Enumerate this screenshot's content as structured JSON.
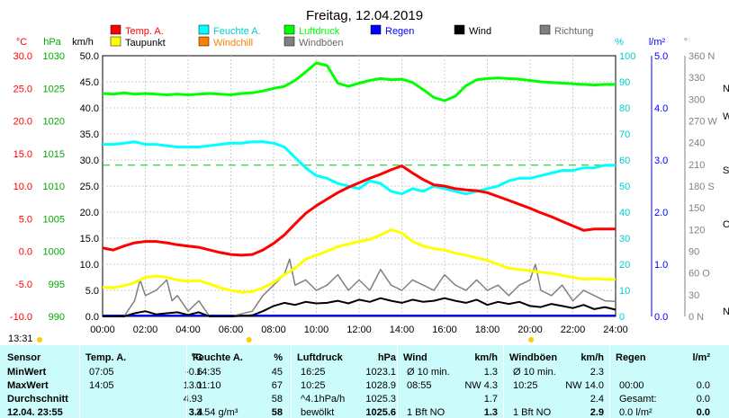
{
  "chart_data": {
    "type": "line",
    "title": "Freitag, 12.04.2019",
    "x_ticks": [
      "00:00",
      "02:00",
      "04:00",
      "06:00",
      "08:00",
      "10:00",
      "12:00",
      "14:00",
      "16:00",
      "18:00",
      "20:00",
      "22:00",
      "24:00"
    ],
    "axes": {
      "temp_unit": "°C",
      "hpa_unit": "hPa",
      "kmh_unit": "km/h",
      "pct_unit": "%",
      "lm2_unit": "l/m²",
      "dir_unit": "°",
      "temp_ticks": [
        "30.0",
        "25.0",
        "20.0",
        "15.0",
        "10.0",
        "5.0",
        "0.0",
        "-5.0",
        "-10.0"
      ],
      "hpa_ticks": [
        "1030",
        "1025",
        "1020",
        "1015",
        "1010",
        "1005",
        "1000",
        "995",
        "990"
      ],
      "kmh_ticks": [
        "50.0",
        "45.0",
        "40.0",
        "35.0",
        "30.0",
        "25.0",
        "20.0",
        "15.0",
        "10.0",
        "5.0",
        "0.0"
      ],
      "pct_ticks": [
        "100",
        "90",
        "80",
        "70",
        "60",
        "50",
        "40",
        "30",
        "20",
        "10",
        "0"
      ],
      "lm2_ticks": [
        "5.0",
        "4.0",
        "3.0",
        "2.0",
        "1.0",
        "0.0"
      ],
      "deg_ticks": [
        "360 N",
        "330",
        "300",
        "270 W",
        "240",
        "210",
        "180 S",
        "150",
        "120",
        "90",
        "60 O",
        "30",
        "0 N"
      ],
      "dir_letters": [
        "N",
        "W",
        "S",
        "O",
        "N"
      ],
      "ylim_temp": [
        -10,
        30
      ],
      "ylim_hpa": [
        990,
        1030
      ],
      "ylim_kmh": [
        0,
        50
      ],
      "ylim_pct": [
        0,
        100
      ],
      "ylim_lm2": [
        0,
        5
      ],
      "ylim_deg": [
        0,
        360
      ]
    },
    "legend": [
      {
        "name": "Temp. A.",
        "color": "#ff0000"
      },
      {
        "name": "Taupunkt",
        "color": "#ffff00"
      },
      {
        "name": "Feuchte A.",
        "color": "#00ffff"
      },
      {
        "name": "Windchill",
        "color": "#ff8000"
      },
      {
        "name": "Luftdruck",
        "color": "#00ff00"
      },
      {
        "name": "Windböen",
        "color": "#808080"
      },
      {
        "name": "Regen",
        "color": "#0000ff"
      },
      {
        "name": "Wind",
        "color": "#000000"
      },
      {
        "name": "Richtung",
        "color": "#808080"
      }
    ],
    "series": [
      {
        "name": "Temp. A.",
        "axis": "temp",
        "color": "#ff0000",
        "width": 3,
        "x": [
          0,
          0.5,
          1,
          1.5,
          2,
          2.5,
          3,
          3.5,
          4,
          4.5,
          5,
          5.5,
          6,
          6.5,
          7,
          7.5,
          8,
          8.5,
          9,
          9.5,
          10,
          10.5,
          11,
          11.5,
          12,
          12.5,
          13,
          13.5,
          14,
          14.5,
          15,
          15.5,
          16,
          16.5,
          17,
          17.5,
          18,
          18.5,
          19,
          19.5,
          20,
          20.5,
          21,
          21.5,
          22,
          22.5,
          23,
          23.5,
          24
        ],
        "y": [
          0.5,
          0.2,
          0.8,
          1.3,
          1.5,
          1.5,
          1.3,
          1.0,
          0.8,
          0.6,
          0.2,
          -0.2,
          -0.5,
          -0.6,
          -0.5,
          0.2,
          1.2,
          2.5,
          4.2,
          5.8,
          7.0,
          8.0,
          9.0,
          9.8,
          10.5,
          11.2,
          11.8,
          12.5,
          13.1,
          12.0,
          11.0,
          10.2,
          10.0,
          9.6,
          9.4,
          9.3,
          9.0,
          8.4,
          7.8,
          7.2,
          6.6,
          5.9,
          5.3,
          4.6,
          3.9,
          3.2,
          3.4,
          3.4,
          3.4
        ]
      },
      {
        "name": "Taupunkt",
        "axis": "temp",
        "color": "#ffff00",
        "width": 3,
        "x": [
          0,
          0.5,
          1,
          1.5,
          2,
          2.5,
          3,
          3.5,
          4,
          4.5,
          5,
          5.5,
          6,
          6.5,
          7,
          7.5,
          8,
          8.5,
          9,
          9.5,
          10,
          10.5,
          11,
          11.5,
          12,
          12.5,
          13,
          13.5,
          14,
          14.5,
          15,
          15.5,
          16,
          16.5,
          17,
          17.5,
          18,
          18.5,
          19,
          19.5,
          20,
          20.5,
          21,
          21.5,
          22,
          22.5,
          23,
          23.5,
          24
        ],
        "y": [
          -5.5,
          -5.6,
          -5.3,
          -4.8,
          -4.0,
          -3.8,
          -4.0,
          -4.4,
          -4.6,
          -4.5,
          -5.0,
          -5.6,
          -6.0,
          -6.3,
          -6.2,
          -5.6,
          -4.8,
          -3.6,
          -2.6,
          -1.2,
          -0.6,
          0.0,
          0.7,
          1.1,
          1.5,
          1.8,
          2.5,
          3.3,
          2.8,
          1.5,
          0.8,
          0.4,
          0.2,
          -0.3,
          -0.6,
          -1.0,
          -1.4,
          -2.0,
          -2.6,
          -2.8,
          -3.0,
          -3.2,
          -3.4,
          -3.7,
          -4.0,
          -4.3,
          -4.2,
          -4.3,
          -4.3
        ]
      },
      {
        "name": "Feuchte A.",
        "axis": "pct",
        "color": "#00ffff",
        "width": 3,
        "x": [
          0,
          0.5,
          1,
          1.5,
          2,
          2.5,
          3,
          3.5,
          4,
          4.5,
          5,
          5.5,
          6,
          6.5,
          7,
          7.5,
          8,
          8.5,
          9,
          9.5,
          10,
          10.5,
          11,
          11.5,
          12,
          12.5,
          13,
          13.5,
          14,
          14.5,
          15,
          15.5,
          16,
          16.5,
          17,
          17.5,
          18,
          18.5,
          19,
          19.5,
          20,
          20.5,
          21,
          21.5,
          22,
          22.5,
          23,
          23.5,
          24
        ],
        "y": [
          66,
          66,
          66.5,
          67,
          66,
          66,
          65.5,
          65,
          65,
          65,
          65.5,
          66,
          66.5,
          66.5,
          67,
          67,
          66.5,
          65,
          61,
          57,
          54,
          53,
          51,
          50,
          49,
          52,
          51,
          48,
          47,
          49,
          48,
          50,
          49,
          48,
          47,
          48,
          49,
          50,
          52,
          53,
          53,
          54,
          55,
          56,
          56,
          57,
          57,
          58,
          58
        ]
      },
      {
        "name": "Luftdruck",
        "axis": "hpa",
        "color": "#00ff00",
        "width": 3,
        "x": [
          0,
          0.5,
          1,
          1.5,
          2,
          2.5,
          3,
          3.5,
          4,
          4.5,
          5,
          5.5,
          6,
          6.5,
          7,
          7.5,
          8,
          8.5,
          9,
          9.5,
          10,
          10.5,
          11,
          11.5,
          12,
          12.5,
          13,
          13.5,
          14,
          14.5,
          15,
          15.5,
          16,
          16.5,
          17,
          17.5,
          18,
          18.5,
          19,
          19.5,
          20,
          20.5,
          21,
          21.5,
          22,
          22.5,
          23,
          23.5,
          24
        ],
        "y": [
          1024.2,
          1024.1,
          1024.3,
          1024.1,
          1024.2,
          1024.1,
          1024.0,
          1024.1,
          1024.0,
          1024.1,
          1024.2,
          1024.1,
          1024.0,
          1024.2,
          1024.3,
          1024.6,
          1025.0,
          1025.3,
          1026.2,
          1027.5,
          1028.9,
          1028.5,
          1025.8,
          1025.3,
          1025.8,
          1026.2,
          1026.5,
          1026.3,
          1026.4,
          1025.9,
          1024.8,
          1023.6,
          1023.1,
          1023.8,
          1025.4,
          1026.3,
          1026.5,
          1026.6,
          1026.5,
          1026.4,
          1026.2,
          1026.0,
          1025.9,
          1025.8,
          1025.7,
          1025.6,
          1025.5,
          1025.6,
          1025.6
        ]
      },
      {
        "name": "Wind",
        "axis": "kmh",
        "color": "#000000",
        "width": 2,
        "x": [
          0,
          1,
          1.5,
          2,
          2.5,
          3,
          3.5,
          4,
          4.5,
          5,
          6,
          7,
          7.5,
          8,
          8.5,
          9,
          9.5,
          10,
          10.5,
          11,
          11.5,
          12,
          12.5,
          13,
          13.5,
          14,
          14.5,
          15,
          15.5,
          16,
          16.5,
          17,
          17.5,
          18,
          18.5,
          19,
          19.5,
          20,
          20.5,
          21,
          21.5,
          22,
          22.5,
          23,
          23.5,
          24
        ],
        "y": [
          0,
          0,
          0.6,
          1.0,
          0.4,
          0.6,
          0.8,
          0.3,
          0.8,
          0,
          0,
          0.2,
          1.0,
          2.0,
          2.6,
          2.2,
          2.8,
          2.5,
          2.6,
          3.0,
          2.5,
          3.2,
          2.8,
          3.5,
          3.0,
          2.6,
          3.2,
          2.8,
          3.0,
          3.5,
          3.0,
          2.6,
          3.2,
          2.2,
          2.8,
          2.4,
          2.8,
          2.0,
          1.8,
          2.4,
          2.0,
          1.6,
          2.2,
          1.4,
          1.8,
          1.3
        ]
      },
      {
        "name": "Windböen",
        "axis": "kmh",
        "color": "#808080",
        "width": 1.5,
        "x": [
          0,
          1,
          1.5,
          1.75,
          2,
          2.5,
          3,
          3.25,
          3.5,
          4,
          4.5,
          5,
          6,
          7,
          7.5,
          8,
          8.5,
          8.75,
          9,
          9.5,
          10,
          10.5,
          11,
          11.5,
          12,
          12.5,
          13,
          13.5,
          14,
          14.5,
          15,
          15.5,
          16,
          16.5,
          17,
          17.5,
          18,
          18.5,
          19,
          19.5,
          20,
          20.25,
          20.5,
          21,
          21.5,
          22,
          22.5,
          23,
          23.5,
          24
        ],
        "y": [
          0,
          0,
          3,
          7,
          4,
          5,
          7,
          3,
          4,
          1,
          3,
          0,
          0,
          1,
          4,
          6,
          8,
          11,
          6,
          7,
          5,
          6,
          8,
          5,
          7,
          5,
          9,
          6,
          5,
          7,
          6,
          5,
          8,
          6,
          5,
          7,
          5,
          6,
          4,
          6,
          7,
          10,
          5,
          4,
          6,
          3,
          5,
          4,
          3,
          2.9
        ]
      }
    ]
  },
  "table": {
    "clock": "13:31",
    "headers": {
      "sensor": "Sensor",
      "temp": "Temp. A.",
      "temp_unit": "°C",
      "hum": "Feuchte A.",
      "hum_unit": "%",
      "press": "Luftdruck",
      "press_unit": "hPa",
      "wind": "Wind",
      "wind_unit": "km/h",
      "gust": "Windböen",
      "gust_unit": "km/h",
      "rain": "Regen",
      "rain_unit": "l/m²"
    },
    "rows": [
      {
        "label": "MinWert",
        "temp_time": "07:05",
        "temp_val": "-0.6",
        "hum_time": "14:35",
        "hum_val": "45",
        "press_time": "16:25",
        "press_val": "1023.1",
        "wind_time": "Ø 10 min.",
        "wind_val": "1.3",
        "gust_time": "Ø 10 min.",
        "gust_val": "2.3",
        "rain_time": "",
        "rain_val": ""
      },
      {
        "label": "MaxWert",
        "temp_time": "14:05",
        "temp_val": "13.1",
        "hum_time": "01:10",
        "hum_val": "67",
        "press_time": "10:25",
        "press_val": "1028.9",
        "wind_time": "08:55",
        "wind_val": "NW 4.3",
        "gust_time": "10:25",
        "gust_val": "NW 14.0",
        "rain_time": "00:00",
        "rain_val": "0.0"
      },
      {
        "label": "Durchschnitt",
        "temp_time": "",
        "temp_val": "4.93",
        "hum_time": "",
        "hum_val": "58",
        "press_time": "^4.1hPa/h",
        "press_val": "1025.3",
        "wind_time": "",
        "wind_val": "1.7",
        "gust_time": "",
        "gust_val": "2.4",
        "rain_time": "Gesamt:",
        "rain_val": "0.0"
      },
      {
        "label": "12.04. 23:55",
        "temp_time": "",
        "temp_val": "3.4",
        "hum_time": "3.54 g/m³",
        "hum_val": "58",
        "press_time": "bewölkt",
        "press_val": "1025.6",
        "wind_time": "1 Bft NO",
        "wind_val": "1.3",
        "gust_time": "1 Bft NO",
        "gust_val": "2.9",
        "rain_time": "0.0 l/m²",
        "rain_val": "0.0"
      }
    ]
  }
}
